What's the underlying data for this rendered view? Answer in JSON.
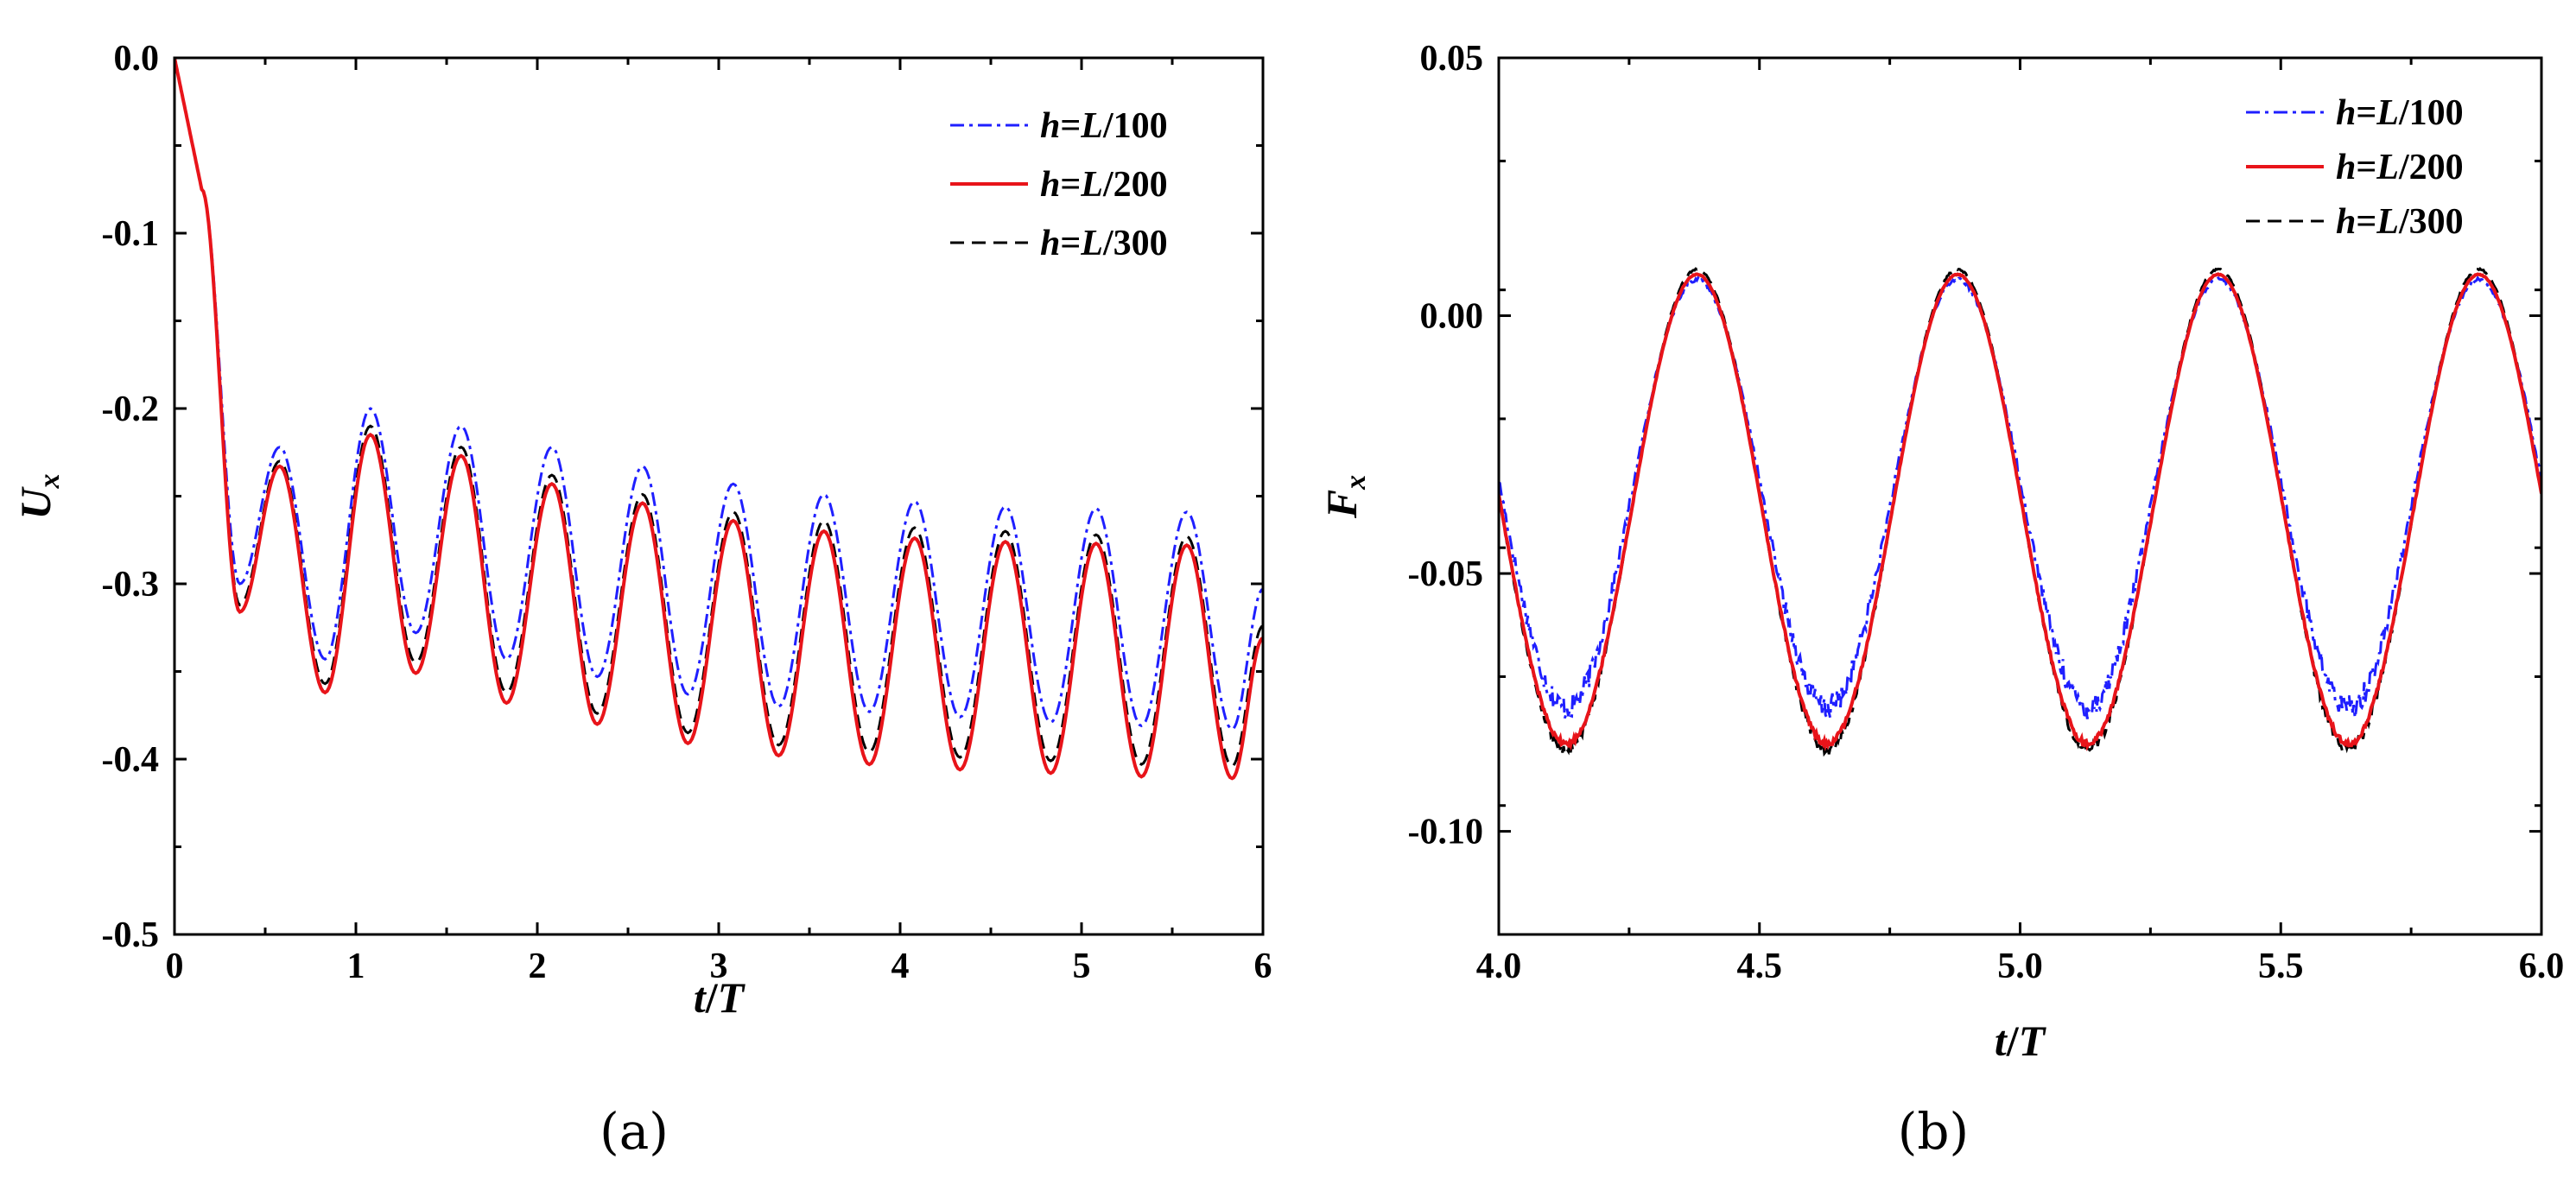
{
  "chart_data": [
    {
      "type": "line",
      "panel_label": "(a)",
      "xlabel_parts": [
        "t",
        "/",
        "T"
      ],
      "ylabel_parts": [
        "U",
        "x"
      ],
      "xlim": [
        0,
        6
      ],
      "ylim": [
        -0.5,
        0.0
      ],
      "xticks": [
        0,
        1,
        2,
        3,
        4,
        5,
        6
      ],
      "xtick_labels": [
        "0",
        "1",
        "2",
        "3",
        "4",
        "5",
        "6"
      ],
      "yticks": [
        0.0,
        -0.1,
        -0.2,
        -0.3,
        -0.4,
        -0.5
      ],
      "ytick_labels": [
        "0.0",
        "-0.1",
        "-0.2",
        "-0.3",
        "-0.4",
        "-0.5"
      ],
      "grid": false,
      "legend_position": "top-right",
      "model": "damped",
      "series": [
        {
          "name": "h=L/100",
          "color": "#1f1fff",
          "dash": "dash-dot",
          "peaks": [
            -0.222,
            -0.2,
            -0.21,
            -0.222,
            -0.233,
            -0.243,
            -0.249,
            -0.253,
            -0.256,
            -0.257,
            -0.259
          ],
          "troughs": [
            -0.3,
            -0.343,
            -0.328,
            -0.343,
            -0.353,
            -0.363,
            -0.37,
            -0.373,
            -0.376,
            -0.379,
            -0.381,
            -0.383
          ]
        },
        {
          "name": "h=L/200",
          "color": "#e8141a",
          "dash": "solid",
          "peaks": [
            -0.233,
            -0.215,
            -0.227,
            -0.243,
            -0.254,
            -0.264,
            -0.27,
            -0.274,
            -0.276,
            -0.277,
            -0.278
          ],
          "troughs": [
            -0.316,
            -0.362,
            -0.351,
            -0.368,
            -0.38,
            -0.391,
            -0.398,
            -0.403,
            -0.406,
            -0.408,
            -0.41,
            -0.411
          ]
        },
        {
          "name": "h=L/300",
          "color": "#000000",
          "dash": "dashed",
          "peaks": [
            -0.23,
            -0.21,
            -0.222,
            -0.238,
            -0.249,
            -0.259,
            -0.264,
            -0.268,
            -0.27,
            -0.272,
            -0.273
          ],
          "troughs": [
            -0.312,
            -0.357,
            -0.345,
            -0.362,
            -0.374,
            -0.385,
            -0.392,
            -0.396,
            -0.399,
            -0.401,
            -0.403,
            -0.404
          ]
        }
      ]
    },
    {
      "type": "line",
      "panel_label": "(b)",
      "xlabel_parts": [
        "t",
        "/",
        "T"
      ],
      "ylabel_parts": [
        "F",
        "x"
      ],
      "xlim": [
        4.0,
        6.0
      ],
      "ylim": [
        -0.12,
        0.05
      ],
      "xticks": [
        4.0,
        4.5,
        5.0,
        5.5,
        6.0
      ],
      "xtick_labels": [
        "4.0",
        "4.5",
        "5.0",
        "5.5",
        "6.0"
      ],
      "yticks": [
        0.05,
        0.0,
        -0.05,
        -0.1
      ],
      "ytick_labels": [
        "0.05",
        "0.00",
        "-0.05",
        "-0.10"
      ],
      "grid": false,
      "legend_position": "top-right",
      "model": "periodic",
      "series": [
        {
          "name": "h=L/100",
          "color": "#1f1fff",
          "dash": "dash-dot",
          "max": 0.007,
          "min": -0.076,
          "noise": 0.0025
        },
        {
          "name": "h=L/200",
          "color": "#e8141a",
          "dash": "solid",
          "max": 0.008,
          "min": -0.083,
          "noise": 0.0006
        },
        {
          "name": "h=L/300",
          "color": "#000000",
          "dash": "dashed",
          "max": 0.009,
          "min": -0.084,
          "noise": 0.0012
        }
      ]
    }
  ]
}
